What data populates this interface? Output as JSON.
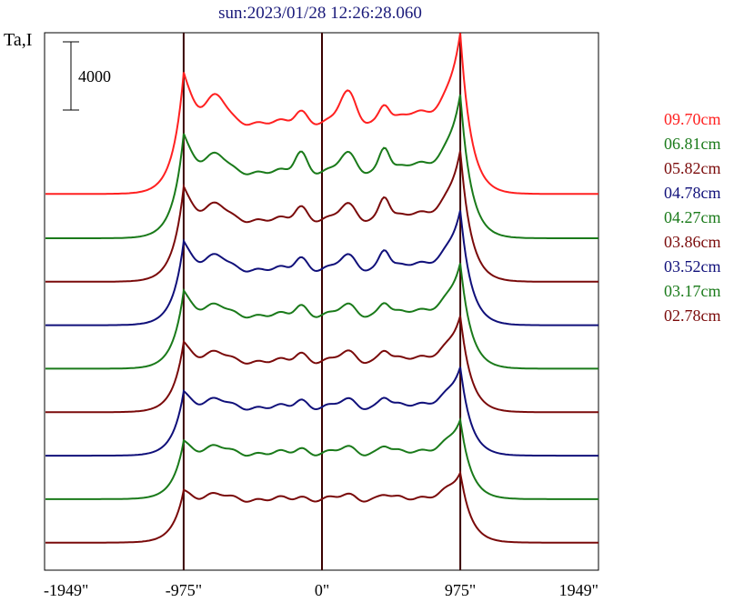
{
  "chart_data": {
    "type": "line",
    "title": "sun:2023/01/28 12:26:28.060",
    "ylabel": "Ta,I",
    "scale_bar_label": "4000",
    "scale_bar_value": 4000,
    "x_ticks": [
      {
        "value": -1949,
        "label": "-1949\""
      },
      {
        "value": -975,
        "label": "-975\""
      },
      {
        "value": 0,
        "label": "0\""
      },
      {
        "value": 975,
        "label": "975\""
      },
      {
        "value": 1949,
        "label": "1949\""
      }
    ],
    "xlim": [
      -1949,
      1949
    ],
    "vertical_lines": [
      -975,
      0,
      975
    ],
    "grid": false,
    "legend_position": "right",
    "series": [
      {
        "name": "09.70cm",
        "color": "#ff2020",
        "offset": 20000,
        "peakL": 8100,
        "peakR": 10500,
        "disk": 5200,
        "low": 1000,
        "bumps": [
          [
            -740,
            1400,
            90
          ],
          [
            -150,
            700,
            60
          ],
          [
            180,
            1800,
            80
          ],
          [
            440,
            1000,
            50
          ],
          [
            650,
            600,
            120
          ]
        ]
      },
      {
        "name": "06.81cm",
        "color": "#1a7a1a",
        "offset": 17500,
        "peakL": 7000,
        "peakR": 9400,
        "disk": 4800,
        "low": 900,
        "bumps": [
          [
            -740,
            900,
            90
          ],
          [
            -150,
            1200,
            60
          ],
          [
            180,
            1100,
            80
          ],
          [
            440,
            1400,
            50
          ],
          [
            650,
            500,
            120
          ]
        ]
      },
      {
        "name": "05.82cm",
        "color": "#7a0a0a",
        "offset": 15000,
        "peakL": 6400,
        "peakR": 8600,
        "disk": 4500,
        "low": 850,
        "bumps": [
          [
            -740,
            800,
            90
          ],
          [
            -150,
            800,
            60
          ],
          [
            180,
            900,
            80
          ],
          [
            440,
            1300,
            50
          ],
          [
            650,
            400,
            120
          ]
        ]
      },
      {
        "name": "04.78cm",
        "color": "#10107a",
        "offset": 12500,
        "peakL": 5700,
        "peakR": 7600,
        "disk": 4100,
        "low": 800,
        "bumps": [
          [
            -740,
            700,
            90
          ],
          [
            -150,
            700,
            60
          ],
          [
            180,
            800,
            80
          ],
          [
            440,
            1100,
            50
          ],
          [
            650,
            350,
            120
          ]
        ]
      },
      {
        "name": "04.27cm",
        "color": "#1a7a1a",
        "offset": 10000,
        "peakL": 5300,
        "peakR": 7000,
        "disk": 3900,
        "low": 750,
        "bumps": [
          [
            -740,
            500,
            90
          ],
          [
            -150,
            600,
            60
          ],
          [
            180,
            600,
            80
          ],
          [
            440,
            700,
            50
          ],
          [
            650,
            300,
            120
          ]
        ]
      },
      {
        "name": "03.86cm",
        "color": "#7a0a0a",
        "offset": 7500,
        "peakL": 4800,
        "peakR": 6400,
        "disk": 3700,
        "low": 700,
        "bumps": [
          [
            -740,
            450,
            90
          ],
          [
            -150,
            500,
            60
          ],
          [
            180,
            550,
            80
          ],
          [
            440,
            600,
            50
          ],
          [
            650,
            250,
            120
          ]
        ]
      },
      {
        "name": "03.52cm",
        "color": "#10107a",
        "offset": 5000,
        "peakL": 4400,
        "peakR": 5900,
        "disk": 3500,
        "low": 650,
        "bumps": [
          [
            -740,
            400,
            90
          ],
          [
            -150,
            450,
            60
          ],
          [
            180,
            450,
            80
          ],
          [
            440,
            550,
            50
          ],
          [
            650,
            200,
            120
          ]
        ]
      },
      {
        "name": "03.17cm",
        "color": "#1a7a1a",
        "offset": 2500,
        "peakL": 4000,
        "peakR": 5300,
        "disk": 3300,
        "low": 600,
        "bumps": [
          [
            -740,
            350,
            90
          ],
          [
            -150,
            300,
            60
          ],
          [
            180,
            350,
            80
          ],
          [
            440,
            400,
            50
          ],
          [
            650,
            150,
            120
          ]
        ]
      },
      {
        "name": "02.78cm",
        "color": "#7a0a0a",
        "offset": 0,
        "peakL": 3600,
        "peakR": 4700,
        "disk": 3100,
        "low": 550,
        "bumps": [
          [
            -740,
            250,
            90
          ],
          [
            -150,
            150,
            60
          ],
          [
            180,
            250,
            80
          ],
          [
            440,
            250,
            50
          ],
          [
            650,
            100,
            120
          ]
        ]
      }
    ]
  }
}
